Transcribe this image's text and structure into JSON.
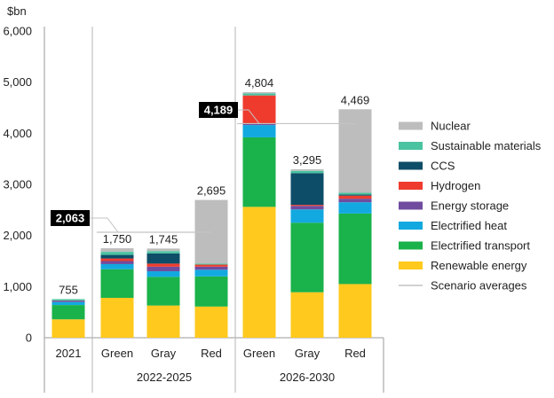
{
  "chart_data": {
    "type": "bar",
    "stacked": true,
    "unit_label": "$bn",
    "ylim": [
      0,
      6000
    ],
    "yticks": [
      0,
      1000,
      2000,
      3000,
      4000,
      5000,
      6000
    ],
    "ytick_labels": [
      "0",
      "1,000",
      "2,000",
      "3,000",
      "4,000",
      "5,000",
      "6,000"
    ],
    "grid": false,
    "legend_position": "right",
    "categories": [
      "2021",
      "Green",
      "Gray",
      "Red",
      "Green",
      "Gray",
      "Red"
    ],
    "groups": [
      {
        "label": "2022-2025",
        "from": 1,
        "to": 3
      },
      {
        "label": "2026-2030",
        "from": 4,
        "to": 6
      }
    ],
    "totals_labels": [
      "755",
      "1,750",
      "1,745",
      "2,695",
      "4,804",
      "3,295",
      "4,469"
    ],
    "series": [
      {
        "name": "Renewable energy",
        "color": "#FFC91E",
        "values": [
          360,
          780,
          630,
          610,
          2560,
          890,
          1050
        ]
      },
      {
        "name": "Electrified transport",
        "color": "#1AB24A",
        "values": [
          280,
          560,
          560,
          590,
          1360,
          1360,
          1380
        ]
      },
      {
        "name": "Electrified heat",
        "color": "#12A9E0",
        "values": [
          60,
          100,
          110,
          130,
          240,
          260,
          220
        ]
      },
      {
        "name": "Energy storage",
        "color": "#6F4C9E",
        "values": [
          20,
          60,
          90,
          60,
          20,
          70,
          70
        ]
      },
      {
        "name": "Hydrogen",
        "color": "#EF3B2E",
        "values": [
          5,
          50,
          60,
          40,
          560,
          20,
          60
        ]
      },
      {
        "name": "CCS",
        "color": "#0E4D67",
        "values": [
          5,
          70,
          200,
          0,
          0,
          620,
          20
        ]
      },
      {
        "name": "Sustainable materials",
        "color": "#49C3A0",
        "values": [
          25,
          60,
          45,
          20,
          40,
          45,
          35
        ]
      },
      {
        "name": "Nuclear",
        "color": "#BDBDBD",
        "values": [
          0,
          70,
          50,
          1245,
          24,
          30,
          1634
        ]
      }
    ],
    "scenario_average_legend": "Scenario averages",
    "scenario_averages": [
      {
        "label": "2,063",
        "value": 2063,
        "group": "2022-2025"
      },
      {
        "label": "4,189",
        "value": 4189,
        "group": "2026-2030"
      }
    ]
  }
}
